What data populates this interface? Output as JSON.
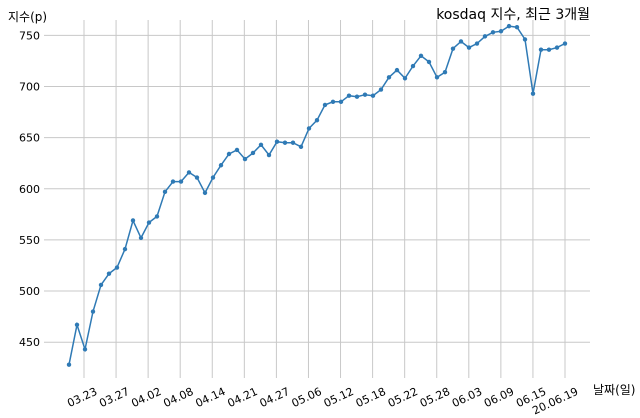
{
  "chart_data": {
    "type": "line",
    "title": "kosdaq 지수, 최근 3개월",
    "ylabel": "지수(p)",
    "xlabel": "날짜(일)",
    "ylim": [
      415,
      765
    ],
    "yticks": [
      450,
      500,
      550,
      600,
      650,
      700,
      750
    ],
    "grid": true,
    "line_color": "#2f7ab5",
    "x_tick_labels": [
      "03.23",
      "03.27",
      "04.02",
      "04.08",
      "04.14",
      "04.21",
      "04.27",
      "05.06",
      "05.12",
      "05.18",
      "05.22",
      "05.28",
      "06.03",
      "06.09",
      "06.15",
      "20.06.19"
    ],
    "series": [
      {
        "values": [
          428,
          467,
          443,
          480,
          506,
          517,
          523,
          541,
          569,
          552,
          567,
          573,
          597,
          607,
          607,
          616,
          611,
          596,
          611,
          623,
          634,
          638,
          629,
          635,
          643,
          633,
          646,
          645,
          645,
          641,
          659,
          667,
          682,
          685,
          685,
          691,
          690,
          692,
          691,
          697,
          709,
          716,
          708,
          720,
          730,
          724,
          709,
          714,
          737,
          744,
          738,
          742,
          749,
          753,
          754,
          759,
          758,
          746,
          693,
          736,
          736,
          738,
          742
        ]
      }
    ]
  }
}
